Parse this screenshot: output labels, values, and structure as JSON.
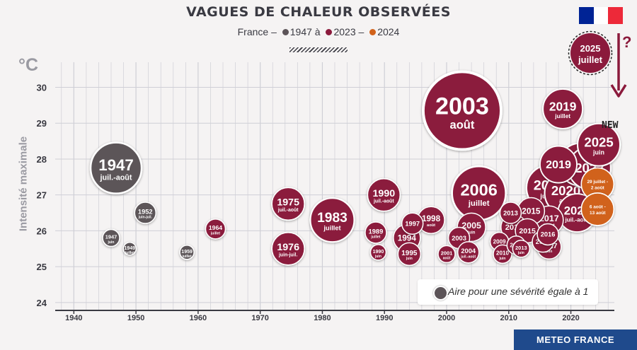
{
  "title": "VAGUES DE CHALEUR OBSERVÉES",
  "subtitle": {
    "part1": "France – ",
    "part2": "1947 à ",
    "part3": "2023 – ",
    "part4": "2024"
  },
  "axis_unit": "°C",
  "y_axis_title": "Intensité maximale",
  "legend_text": "Aire pour une sévérité égale à 1",
  "new_badge": "NEW",
  "question_mark": "?",
  "brand": "METEO FRANCE",
  "colors": {
    "past": "#5c5458",
    "recent": "#8b1a3c",
    "y2024": "#d1621a",
    "grid": "#cfcfd6",
    "axis_text": "#3a3a42",
    "flag_blue": "#002395",
    "flag_white": "#ffffff",
    "flag_red": "#ed2939",
    "brand_bg": "#1f4a8c"
  },
  "chart_data": {
    "type": "scatter",
    "xlabel": "",
    "ylabel": "Intensité maximale",
    "xlim": [
      1937,
      2027
    ],
    "ylim": [
      23.8,
      30.7
    ],
    "x_ticks": [
      1940,
      1950,
      1960,
      1970,
      1980,
      1990,
      2000,
      2010,
      2020
    ],
    "y_ticks": [
      24,
      25,
      26,
      27,
      28,
      29,
      30
    ],
    "series": [
      {
        "name": "1947 à",
        "color": "#5c5458",
        "points": [
          {
            "year": 1946.0,
            "y": 25.8,
            "r": 12,
            "label": "1947",
            "sub": "juin"
          },
          {
            "year": 1946.8,
            "y": 27.75,
            "r": 36,
            "label": "1947",
            "sub": "juil.-août"
          },
          {
            "year": 1949.0,
            "y": 25.5,
            "r": 9,
            "label": "1949",
            "sub": "juillet"
          },
          {
            "year": 1951.5,
            "y": 26.5,
            "r": 15,
            "label": "1952",
            "sub": "juin-juil."
          },
          {
            "year": 1958.2,
            "y": 25.4,
            "r": 10,
            "label": "1959",
            "sub": "juillet"
          }
        ]
      },
      {
        "name": "2023",
        "color": "#8b1a3c",
        "points": [
          {
            "year": 1962.8,
            "y": 26.05,
            "r": 14,
            "label": "1964",
            "sub": "juillet"
          },
          {
            "year": 1974.5,
            "y": 26.75,
            "r": 23,
            "label": "1975",
            "sub": "juil.-août"
          },
          {
            "year": 1974.5,
            "y": 25.5,
            "r": 23,
            "label": "1976",
            "sub": "juin-juil."
          },
          {
            "year": 1981.6,
            "y": 26.3,
            "r": 31,
            "label": "1983",
            "sub": "juillet"
          },
          {
            "year": 1989.0,
            "y": 25.4,
            "r": 11,
            "label": "1990",
            "sub": "juin"
          },
          {
            "year": 1988.6,
            "y": 25.95,
            "r": 15,
            "label": "1989",
            "sub": "juillet"
          },
          {
            "year": 1989.9,
            "y": 27.0,
            "r": 23,
            "label": "1990",
            "sub": "juil.-août"
          },
          {
            "year": 1993.6,
            "y": 25.8,
            "r": 19,
            "label": "1994",
            "sub": ""
          },
          {
            "year": 1994.0,
            "y": 25.35,
            "r": 16,
            "label": "1995",
            "sub": "juin"
          },
          {
            "year": 1994.5,
            "y": 26.2,
            "r": 15,
            "label": "1997",
            "sub": ""
          },
          {
            "year": 1997.5,
            "y": 26.3,
            "r": 19,
            "label": "1998",
            "sub": "août"
          },
          {
            "year": 2000.0,
            "y": 25.35,
            "r": 12,
            "label": "2001",
            "sub": "août"
          },
          {
            "year": 2002.0,
            "y": 25.8,
            "r": 15,
            "label": "2003",
            "sub": ""
          },
          {
            "year": 2002.5,
            "y": 29.35,
            "r": 55,
            "label": "2003",
            "sub": "août"
          },
          {
            "year": 2003.5,
            "y": 25.4,
            "r": 15,
            "label": "2004",
            "sub": "juil.-août"
          },
          {
            "year": 2004.0,
            "y": 26.1,
            "r": 20,
            "label": "2005",
            "sub": "juin"
          },
          {
            "year": 2005.2,
            "y": 27.05,
            "r": 38,
            "label": "2006",
            "sub": "juillet"
          },
          {
            "year": 2008.5,
            "y": 25.7,
            "r": 13,
            "label": "2009",
            "sub": ""
          },
          {
            "year": 2009.0,
            "y": 25.35,
            "r": 13,
            "label": "2010",
            "sub": "juin"
          },
          {
            "year": 2010.8,
            "y": 26.1,
            "r": 18,
            "label": "2011",
            "sub": ""
          },
          {
            "year": 2010.3,
            "y": 26.5,
            "r": 15,
            "label": "2013",
            "sub": ""
          },
          {
            "year": 2011.2,
            "y": 25.6,
            "r": 13,
            "label": "2012",
            "sub": ""
          },
          {
            "year": 2012.0,
            "y": 25.5,
            "r": 12,
            "label": "2013",
            "sub": "juin"
          },
          {
            "year": 2013.6,
            "y": 26.55,
            "r": 19,
            "label": "2015",
            "sub": ""
          },
          {
            "year": 2013.0,
            "y": 26.0,
            "r": 17,
            "label": "2015",
            "sub": ""
          },
          {
            "year": 2016.5,
            "y": 27.2,
            "r": 32,
            "label": "2018",
            "sub": "juillet"
          },
          {
            "year": 2015.5,
            "y": 25.7,
            "r": 15,
            "label": "2016",
            "sub": ""
          },
          {
            "year": 2016.3,
            "y": 25.9,
            "r": 15,
            "label": "2016",
            "sub": ""
          },
          {
            "year": 2016.5,
            "y": 25.55,
            "r": 17,
            "label": "2017",
            "sub": "juin"
          },
          {
            "year": 2016.5,
            "y": 26.3,
            "r": 20,
            "label": "2017",
            "sub": "juillet"
          },
          {
            "year": 2018.0,
            "y": 27.85,
            "r": 26,
            "label": "2019",
            "sub": ""
          },
          {
            "year": 2019.2,
            "y": 27.05,
            "r": 30,
            "label": "2020",
            "sub": "août"
          },
          {
            "year": 2021.5,
            "y": 27.85,
            "r": 30,
            "label": "2020",
            "sub": ""
          },
          {
            "year": 2023.0,
            "y": 27.75,
            "r": 30,
            "label": "2022",
            "sub": ""
          },
          {
            "year": 2018.7,
            "y": 29.4,
            "r": 28,
            "label": "2019",
            "sub": "juillet"
          },
          {
            "year": 2021.0,
            "y": 26.5,
            "r": 27,
            "label": "2023",
            "sub": "juil.-août"
          }
        ]
      },
      {
        "name": "2024",
        "color": "#d1621a",
        "points": [
          {
            "year": 2024.3,
            "y": 27.3,
            "r": 23,
            "label": "",
            "sub": "29 juillet - 2 août"
          },
          {
            "year": 2024.3,
            "y": 26.6,
            "r": 23,
            "label": "",
            "sub": "6 août - 13 août"
          }
        ]
      },
      {
        "name": "2025",
        "color": "#8b1a3c",
        "points": [
          {
            "year": 2024.5,
            "y": 28.4,
            "r": 30,
            "label": "2025",
            "sub": "juin"
          }
        ]
      }
    ],
    "forecast": {
      "label": "2025",
      "sub": "juillet",
      "color": "#8b1a3c"
    }
  }
}
